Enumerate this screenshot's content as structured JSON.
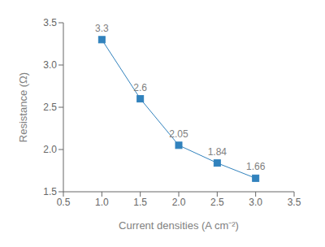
{
  "chart_data": {
    "type": "line",
    "xlabel": "Current densities (A cm⁻²)",
    "ylabel": "Resistance (Ω)",
    "x": [
      1.0,
      1.5,
      2.0,
      2.5,
      3.0
    ],
    "values": [
      3.3,
      2.6,
      2.05,
      1.84,
      1.66
    ],
    "xlim": [
      0.5,
      3.5
    ],
    "ylim": [
      1.5,
      3.5
    ],
    "xticks": [
      0.5,
      {
        "value": 1.0,
        "label": "1.0"
      },
      1.5,
      {
        "value": 2.0,
        "label": "2.0"
      },
      2.5,
      {
        "value": 3.0,
        "label": "3.0"
      },
      3.5
    ],
    "yticks": [
      1.5,
      {
        "value": 2.0,
        "label": "2.0"
      },
      2.5,
      {
        "value": 3.0,
        "label": "3.0"
      },
      3.5
    ],
    "marker": "square",
    "data_labels": true
  }
}
